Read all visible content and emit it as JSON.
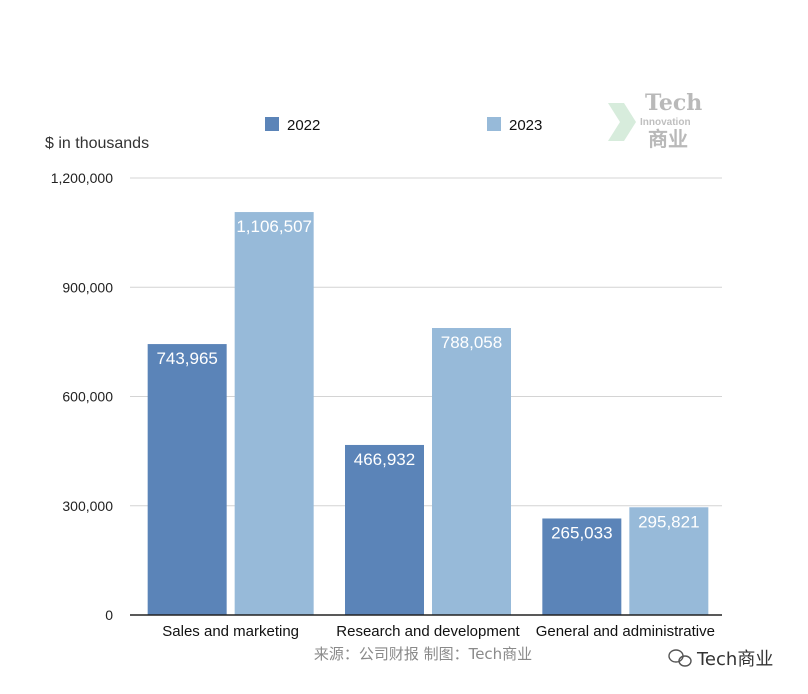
{
  "chart_data": {
    "type": "bar",
    "ylabel": "$ in thousands",
    "categories": [
      "Sales and marketing",
      "Research and development",
      "General and administrative"
    ],
    "series": [
      {
        "name": "2022",
        "color": "#5b84b8",
        "values": [
          743965,
          466932,
          265033
        ]
      },
      {
        "name": "2023",
        "color": "#97bad9",
        "values": [
          1106507,
          788058,
          295821
        ]
      }
    ],
    "data_labels": [
      [
        "743,965",
        "466,932",
        "265,033"
      ],
      [
        "1,106,507",
        "788,058",
        "295,821"
      ]
    ],
    "ylim": [
      0,
      1200000
    ],
    "yticks": [
      0,
      300000,
      600000,
      900000,
      1200000
    ],
    "ytick_labels": [
      "0",
      "300,000",
      "600,000",
      "900,000",
      "1,200,000"
    ],
    "grid": true,
    "legend_position": "top"
  },
  "source_note": "来源：公司财报 制图：Tech商业",
  "watermark": {
    "line1": "Tech",
    "line2": "Innovation",
    "line3": "商业"
  },
  "wechat_label": "Tech商业"
}
